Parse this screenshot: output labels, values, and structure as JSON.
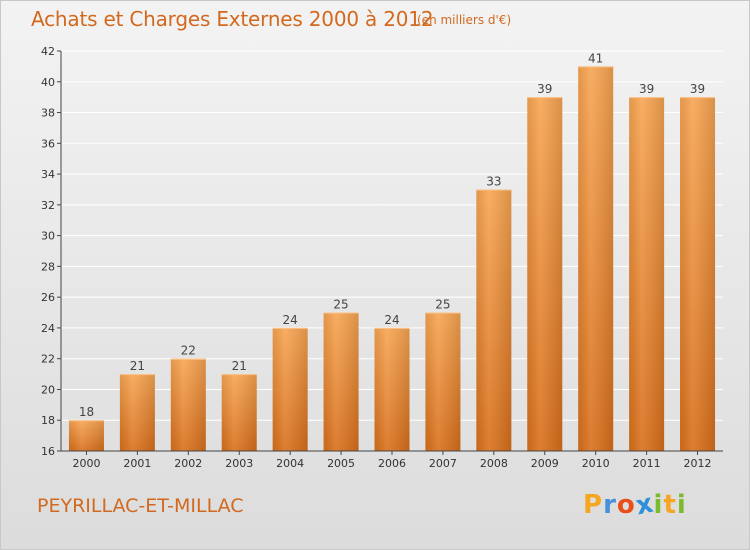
{
  "header": {
    "title": "Achats et Charges Externes 2000 à 2012",
    "unit": "(en milliers d'€)"
  },
  "footer": {
    "commune": "PEYRILLAC-ET-MILLAC",
    "brand_letters": [
      "P",
      "r",
      "o",
      "x",
      "i",
      "t",
      "i"
    ],
    "brand_colors": [
      "#f5a623",
      "#4a90d9",
      "#e94e1b",
      "#2f8fd8",
      "#7dbb2e",
      "#f5a623",
      "#7dbb2e"
    ]
  },
  "colors": {
    "accent": "#d2691e",
    "bar_light": "#f7a552",
    "bar_dark": "#d86f1b",
    "grid": "#ffffff",
    "axis": "#444444"
  },
  "chart_data": {
    "type": "bar",
    "title": "Achats et Charges Externes 2000 à 2012",
    "subtitle": "(en milliers d'€)",
    "xlabel": "",
    "ylabel": "",
    "categories": [
      "2000",
      "2001",
      "2002",
      "2003",
      "2004",
      "2005",
      "2006",
      "2007",
      "2008",
      "2009",
      "2010",
      "2011",
      "2012"
    ],
    "values": [
      18,
      21,
      22,
      21,
      24,
      25,
      24,
      25,
      33,
      39,
      41,
      39,
      39
    ],
    "ylim": [
      16,
      42
    ],
    "yticks": [
      16,
      18,
      20,
      22,
      24,
      26,
      28,
      30,
      32,
      34,
      36,
      38,
      40,
      42
    ],
    "grid": true,
    "legend": "none"
  }
}
